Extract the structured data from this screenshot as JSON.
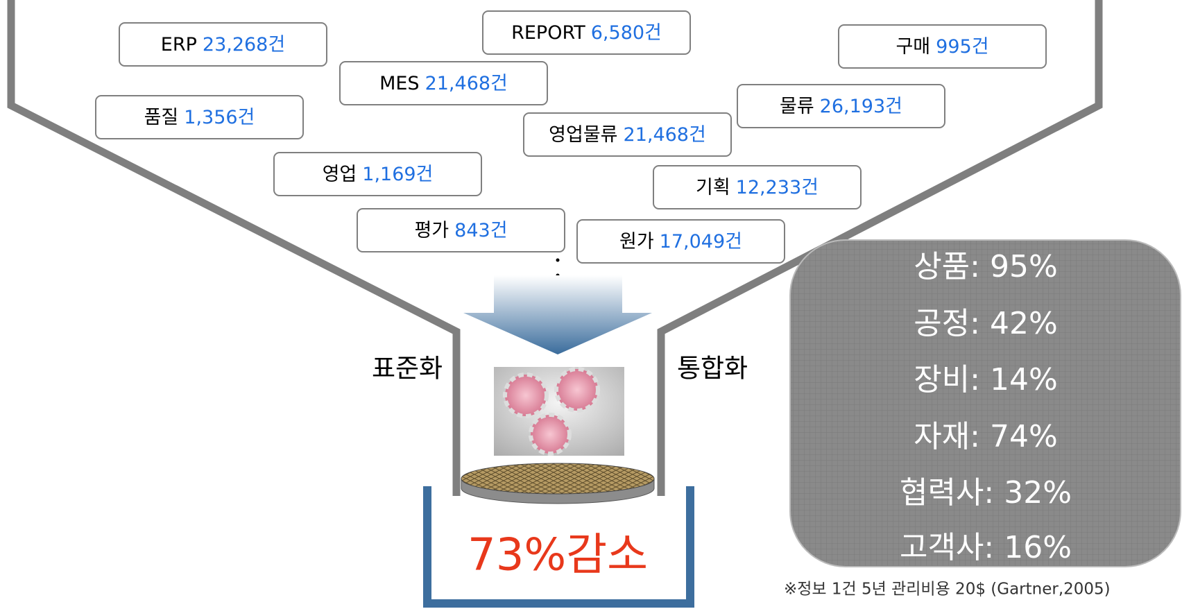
{
  "sources": [
    {
      "label": "ERP",
      "count": "23,268건"
    },
    {
      "label": "REPORT",
      "count": "6,580건"
    },
    {
      "label": "구매",
      "count": "995건"
    },
    {
      "label": "MES",
      "count": "21,468건"
    },
    {
      "label": "물류",
      "count": "26,193건"
    },
    {
      "label": "품질",
      "count": "1,356건"
    },
    {
      "label": "영업물류",
      "count": "21,468건"
    },
    {
      "label": "영업",
      "count": "1,169건"
    },
    {
      "label": "기획",
      "count": "12,233건"
    },
    {
      "label": "평가",
      "count": "843건"
    },
    {
      "label": "원가",
      "count": "17,049건"
    }
  ],
  "left_label": "표준화",
  "right_label": "통합화",
  "result": "73%감소",
  "panel": {
    "items": [
      "상품: 95%",
      "공정: 42%",
      "장비: 14%",
      "자재: 74%",
      "협력사: 32%",
      "고객사: 16%"
    ]
  },
  "footnote": "※정보 1건 5년 관리비용 20$ (Gartner,2005)"
}
